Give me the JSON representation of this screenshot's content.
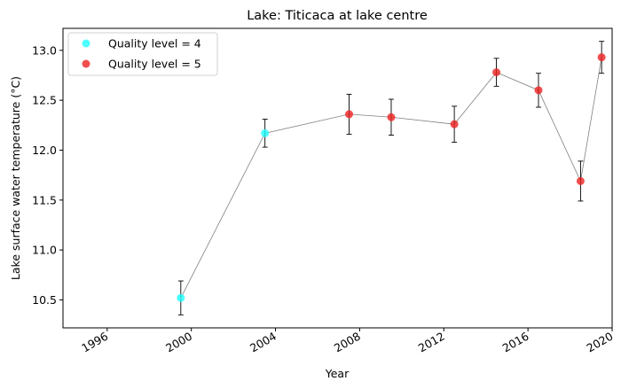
{
  "chart_data": {
    "type": "scatter",
    "title": "Lake: Titicaca at lake centre",
    "xlabel": "Year",
    "ylabel": "Lake surface water temperature (°C)",
    "xlim": [
      1993.9,
      2020.0
    ],
    "ylim": [
      10.22,
      13.22
    ],
    "x_ticks": [
      1996,
      2000,
      2004,
      2008,
      2012,
      2016,
      2020
    ],
    "y_ticks": [
      10.5,
      11.0,
      11.5,
      12.0,
      12.5,
      13.0
    ],
    "y_tick_labels": [
      "10.5",
      "11.0",
      "11.5",
      "12.0",
      "12.5",
      "13.0"
    ],
    "legend_position": "top-left",
    "grid": false,
    "line_color": "#808080",
    "error_bar_color": "#000000",
    "series": [
      {
        "name": "Quality level = 4",
        "color": "#22ffff",
        "x": [
          1999.5,
          2003.5
        ],
        "y": [
          10.52,
          12.17
        ],
        "yerr": [
          0.17,
          0.14
        ]
      },
      {
        "name": "Quality level = 5",
        "color": "#ee2222",
        "x": [
          2007.5,
          2009.5,
          2012.5,
          2014.5,
          2016.5,
          2018.5,
          2019.5
        ],
        "y": [
          12.36,
          12.33,
          12.26,
          12.78,
          12.6,
          11.69,
          12.93
        ],
        "yerr": [
          0.2,
          0.18,
          0.18,
          0.14,
          0.17,
          0.2,
          0.16
        ]
      }
    ]
  }
}
